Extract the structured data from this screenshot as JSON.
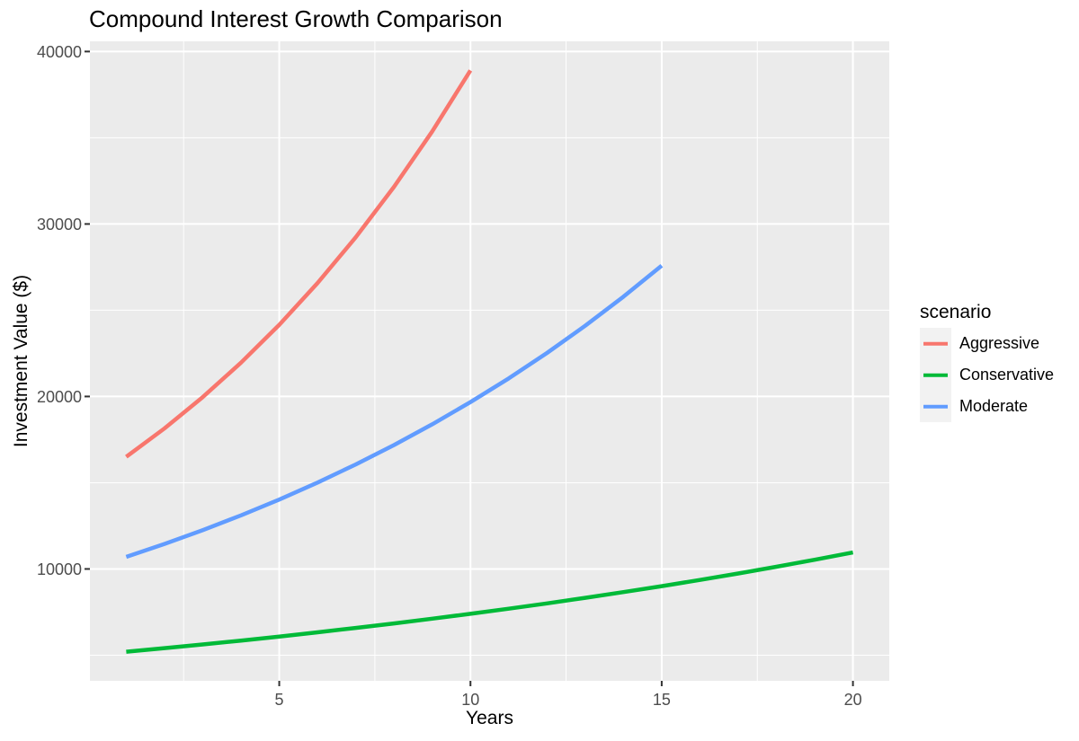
{
  "style": {
    "panel_bg": "#EBEBEB",
    "grid_color": "#FFFFFF",
    "legend_key_bg": "#F2F2F2",
    "tick_text_color": "#4D4D4D",
    "tick_mark_color": "#333333",
    "text_color": "#000000"
  },
  "chart_data": {
    "type": "line",
    "title": "Compound Interest Growth Comparison",
    "xlabel": "Years",
    "ylabel": "Investment Value ($)",
    "grid": true,
    "legend": {
      "title": "scenario",
      "position": "right"
    },
    "x_ticks": [
      5,
      10,
      15,
      20
    ],
    "y_ticks": [
      10000,
      20000,
      30000,
      40000
    ],
    "x_minor_ticks": [
      2.5,
      7.5,
      12.5,
      17.5
    ],
    "y_minor_ticks": [
      5000,
      15000,
      25000,
      35000
    ],
    "xlim": [
      0.05,
      20.95
    ],
    "ylim": [
      3514.69,
      40591.45
    ],
    "series": [
      {
        "name": "Aggressive",
        "color": "#F8766D",
        "x": [
          1,
          2,
          3,
          4,
          5,
          6,
          7,
          8,
          9,
          10
        ],
        "y": [
          16500,
          18150,
          19965,
          21961.5,
          24157.65,
          26573.42,
          29230.76,
          32153.83,
          35369.22,
          38906.14
        ]
      },
      {
        "name": "Conservative",
        "color": "#00BA38",
        "x": [
          1,
          2,
          3,
          4,
          5,
          6,
          7,
          8,
          9,
          10,
          11,
          12,
          13,
          14,
          15,
          16,
          17,
          18,
          19,
          20
        ],
        "y": [
          5200,
          5408,
          5624.32,
          5849.29,
          6083.26,
          6326.59,
          6579.66,
          6842.85,
          7116.56,
          7401.22,
          7697.27,
          8005.16,
          8325.37,
          8658.38,
          9004.72,
          9364.91,
          9739.5,
          10129.08,
          10534.24,
          10955.62
        ]
      },
      {
        "name": "Moderate",
        "color": "#619CFF",
        "x": [
          1,
          2,
          3,
          4,
          5,
          6,
          7,
          8,
          9,
          10,
          11,
          12,
          13,
          14,
          15
        ],
        "y": [
          10700,
          11449,
          12250.43,
          13107.96,
          14025.52,
          15007.3,
          16057.81,
          17181.86,
          18384.59,
          19671.51,
          21048.52,
          22521.92,
          24098.45,
          25785.34,
          27590.32
        ]
      }
    ]
  }
}
